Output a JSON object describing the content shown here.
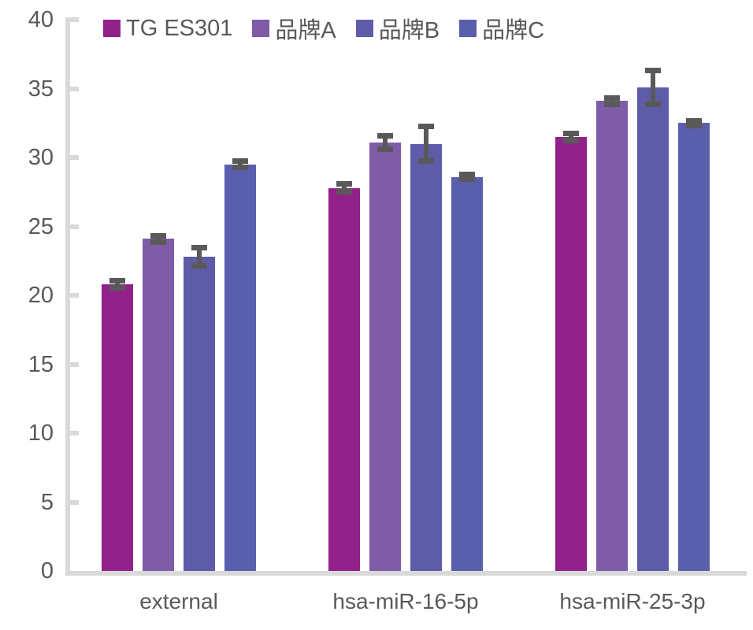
{
  "chart_data": {
    "type": "bar",
    "title": "",
    "xlabel": "",
    "ylabel": "",
    "categories": [
      "external",
      "hsa-miR-16-5p",
      "hsa-miR-25-3p"
    ],
    "series": [
      {
        "name": "TG ES301",
        "color": "#92218A",
        "values": [
          20.8,
          27.8,
          31.5
        ],
        "errors": [
          0.3,
          0.3,
          0.3
        ]
      },
      {
        "name": "品牌A",
        "color": "#7E5CA7",
        "values": [
          24.1,
          31.1,
          34.1
        ],
        "errors": [
          0.25,
          0.5,
          0.25
        ]
      },
      {
        "name": "品牌B",
        "color": "#5E5CA8",
        "values": [
          22.8,
          31.0,
          35.1
        ],
        "errors": [
          0.7,
          1.3,
          1.25
        ]
      },
      {
        "name": "品牌C",
        "color": "#5A5FAD",
        "values": [
          29.5,
          28.6,
          32.5
        ],
        "errors": [
          0.25,
          0.2,
          0.2
        ]
      }
    ],
    "ylim": [
      0,
      40
    ],
    "ytick_step": 5,
    "yticks": [
      40,
      35,
      30,
      25,
      20,
      15,
      10,
      5,
      0
    ],
    "legend_position": "top",
    "grid": false,
    "error_bars": true,
    "colors": {
      "axis": "#d9d9d9",
      "text": "#595959",
      "error_bar": "#595959",
      "background": "#ffffff"
    }
  }
}
